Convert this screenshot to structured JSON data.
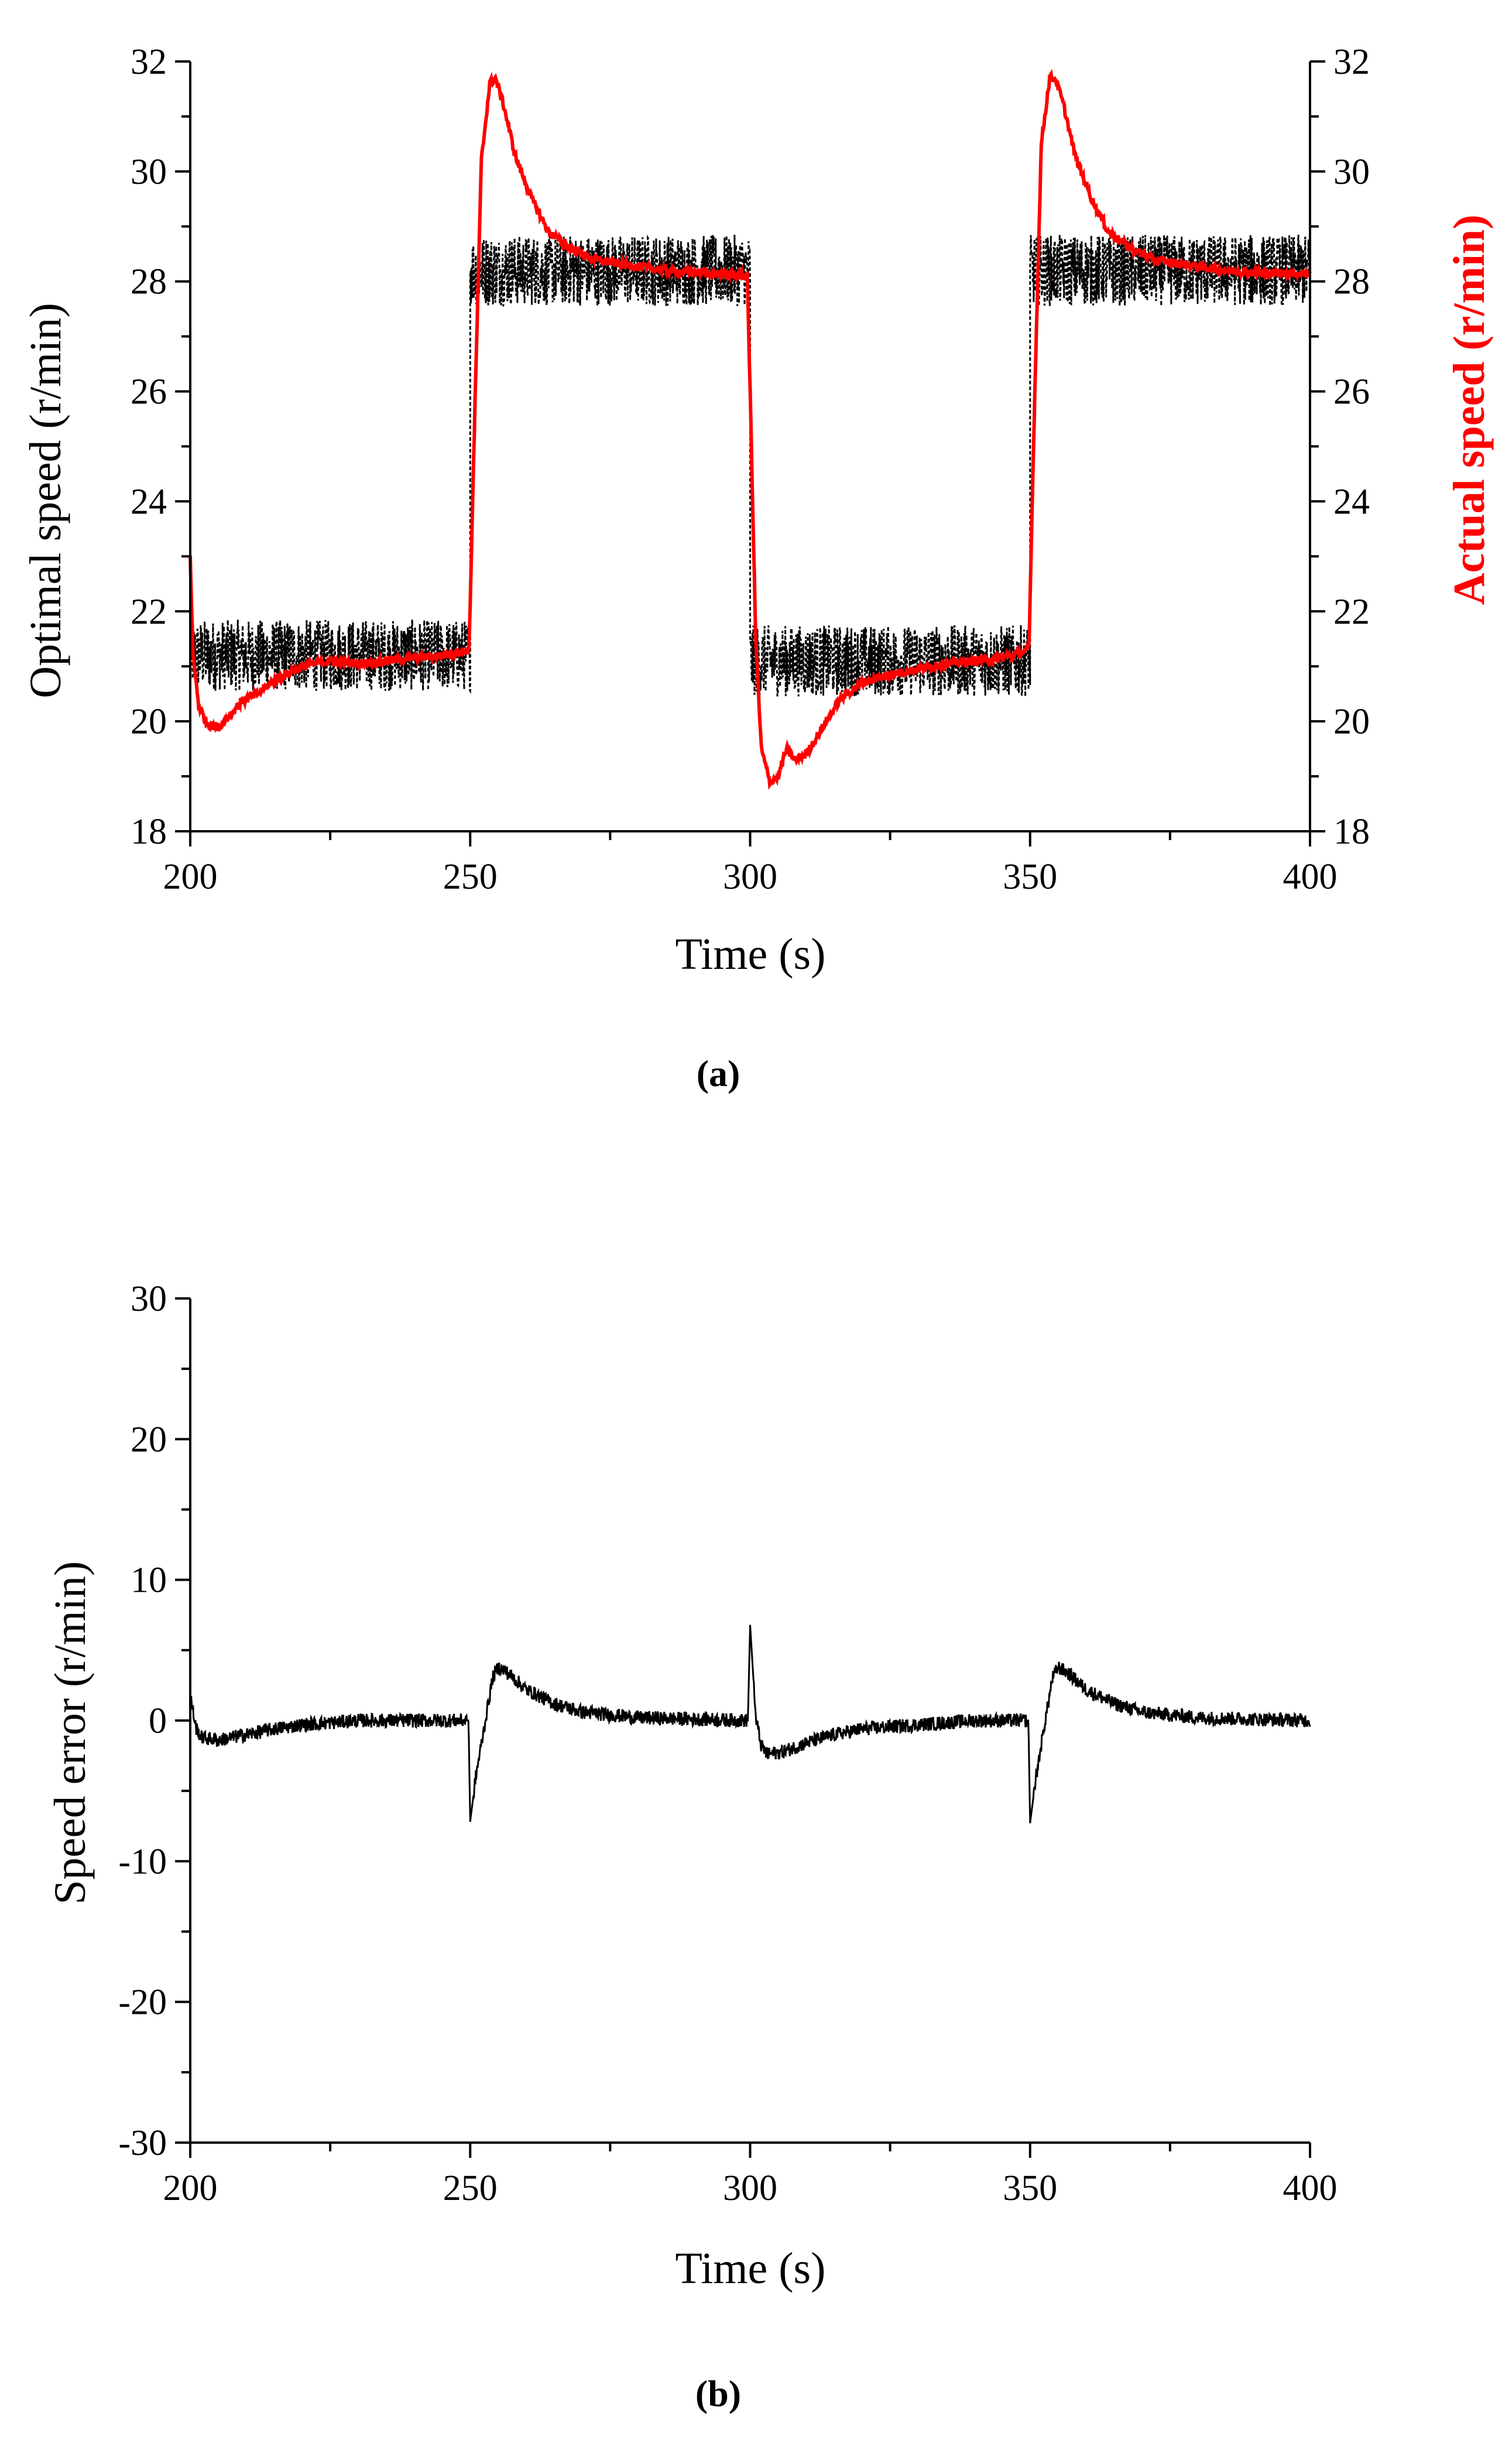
{
  "chart_data": [
    {
      "type": "line",
      "panel_label": "(a)",
      "xlabel": "Time  (s)",
      "ylabel_left": "Optimal speed  (r/min)",
      "ylabel_right": "Actual speed (r/min)",
      "xlim": [
        200,
        400
      ],
      "ylim": [
        18,
        32
      ],
      "x_ticks": [
        "200",
        "250",
        "300",
        "350",
        "400"
      ],
      "y_ticks": [
        "18",
        "20",
        "22",
        "24",
        "26",
        "28",
        "30",
        "32"
      ],
      "colors": {
        "axis": "#000000",
        "optimal": "#000000",
        "actual": "#ff0000"
      },
      "series": [
        {
          "name": "Optimal speed",
          "style": "dashed-noisy",
          "noise_amplitude": 0.65,
          "levels": [
            {
              "x_start": 200,
              "x_end": 250,
              "y": 21.2
            },
            {
              "x_start": 250,
              "x_end": 300,
              "y": 28.2
            },
            {
              "x_start": 300,
              "x_end": 350,
              "y": 21.1
            },
            {
              "x_start": 350,
              "x_end": 400,
              "y": 28.2
            }
          ]
        },
        {
          "name": "Actual speed",
          "style": "solid",
          "x": [
            200,
            200.5,
            201.5,
            203,
            205,
            207,
            209,
            212,
            215,
            220,
            225,
            230,
            235,
            240,
            245,
            249.8,
            250.8,
            252,
            253.5,
            254.5,
            256,
            258,
            261,
            264,
            268,
            272,
            278,
            285,
            292,
            299.5,
            300,
            301,
            302,
            303.5,
            305,
            306.5,
            308,
            310,
            313,
            316,
            320,
            325,
            330,
            335,
            340,
            345,
            349.8,
            350.8,
            352,
            353.5,
            354.5,
            356,
            358,
            361,
            364,
            368,
            372,
            378,
            385,
            392,
            400
          ],
          "y": [
            23.0,
            21.2,
            20.3,
            19.95,
            19.9,
            20.1,
            20.35,
            20.5,
            20.75,
            21.0,
            21.1,
            21.05,
            21.1,
            21.15,
            21.2,
            21.3,
            25.5,
            30.2,
            31.6,
            31.7,
            31.2,
            30.3,
            29.5,
            28.9,
            28.6,
            28.4,
            28.3,
            28.2,
            28.15,
            28.1,
            26.0,
            21.5,
            19.5,
            18.9,
            19.0,
            19.5,
            19.3,
            19.4,
            19.9,
            20.4,
            20.7,
            20.85,
            20.95,
            21.05,
            21.1,
            21.15,
            21.3,
            25.8,
            30.5,
            31.7,
            31.7,
            31.2,
            30.3,
            29.5,
            28.9,
            28.6,
            28.4,
            28.3,
            28.2,
            28.15,
            28.15
          ]
        }
      ]
    },
    {
      "type": "line",
      "panel_label": "(b)",
      "xlabel": "Time  (s)",
      "ylabel": "Speed error (r/min)",
      "xlim": [
        200,
        400
      ],
      "ylim": [
        -30,
        30
      ],
      "x_ticks": [
        "200",
        "250",
        "300",
        "350",
        "400"
      ],
      "y_ticks": [
        "-30",
        "-20",
        "-10",
        "0",
        "10",
        "20",
        "30"
      ],
      "series": [
        {
          "name": "Speed error",
          "style": "solid-noisy",
          "noise_amplitude": 0.5,
          "x": [
            200,
            201,
            202,
            205,
            210,
            215,
            220,
            230,
            240,
            249.7,
            250,
            251,
            252.5,
            254,
            255,
            257,
            260,
            265,
            270,
            280,
            290,
            299.6,
            300,
            301,
            302,
            303,
            306,
            310,
            315,
            320,
            330,
            340,
            349.7,
            350,
            351,
            352.5,
            354,
            355,
            357,
            360,
            365,
            370,
            380,
            390,
            400
          ],
          "y": [
            1.8,
            -0.5,
            -1.2,
            -1.4,
            -1.0,
            -0.6,
            -0.3,
            0.0,
            0.0,
            0.0,
            -7.2,
            -4.0,
            -0.5,
            3.0,
            3.8,
            3.3,
            2.2,
            1.2,
            0.6,
            0.2,
            0.1,
            0.0,
            6.8,
            0.2,
            -1.8,
            -2.4,
            -2.2,
            -1.6,
            -1.0,
            -0.6,
            -0.3,
            0.0,
            0.0,
            -7.3,
            -4.2,
            -0.5,
            3.0,
            3.8,
            3.3,
            2.2,
            1.2,
            0.6,
            0.2,
            0.1,
            0.0
          ]
        }
      ]
    }
  ]
}
